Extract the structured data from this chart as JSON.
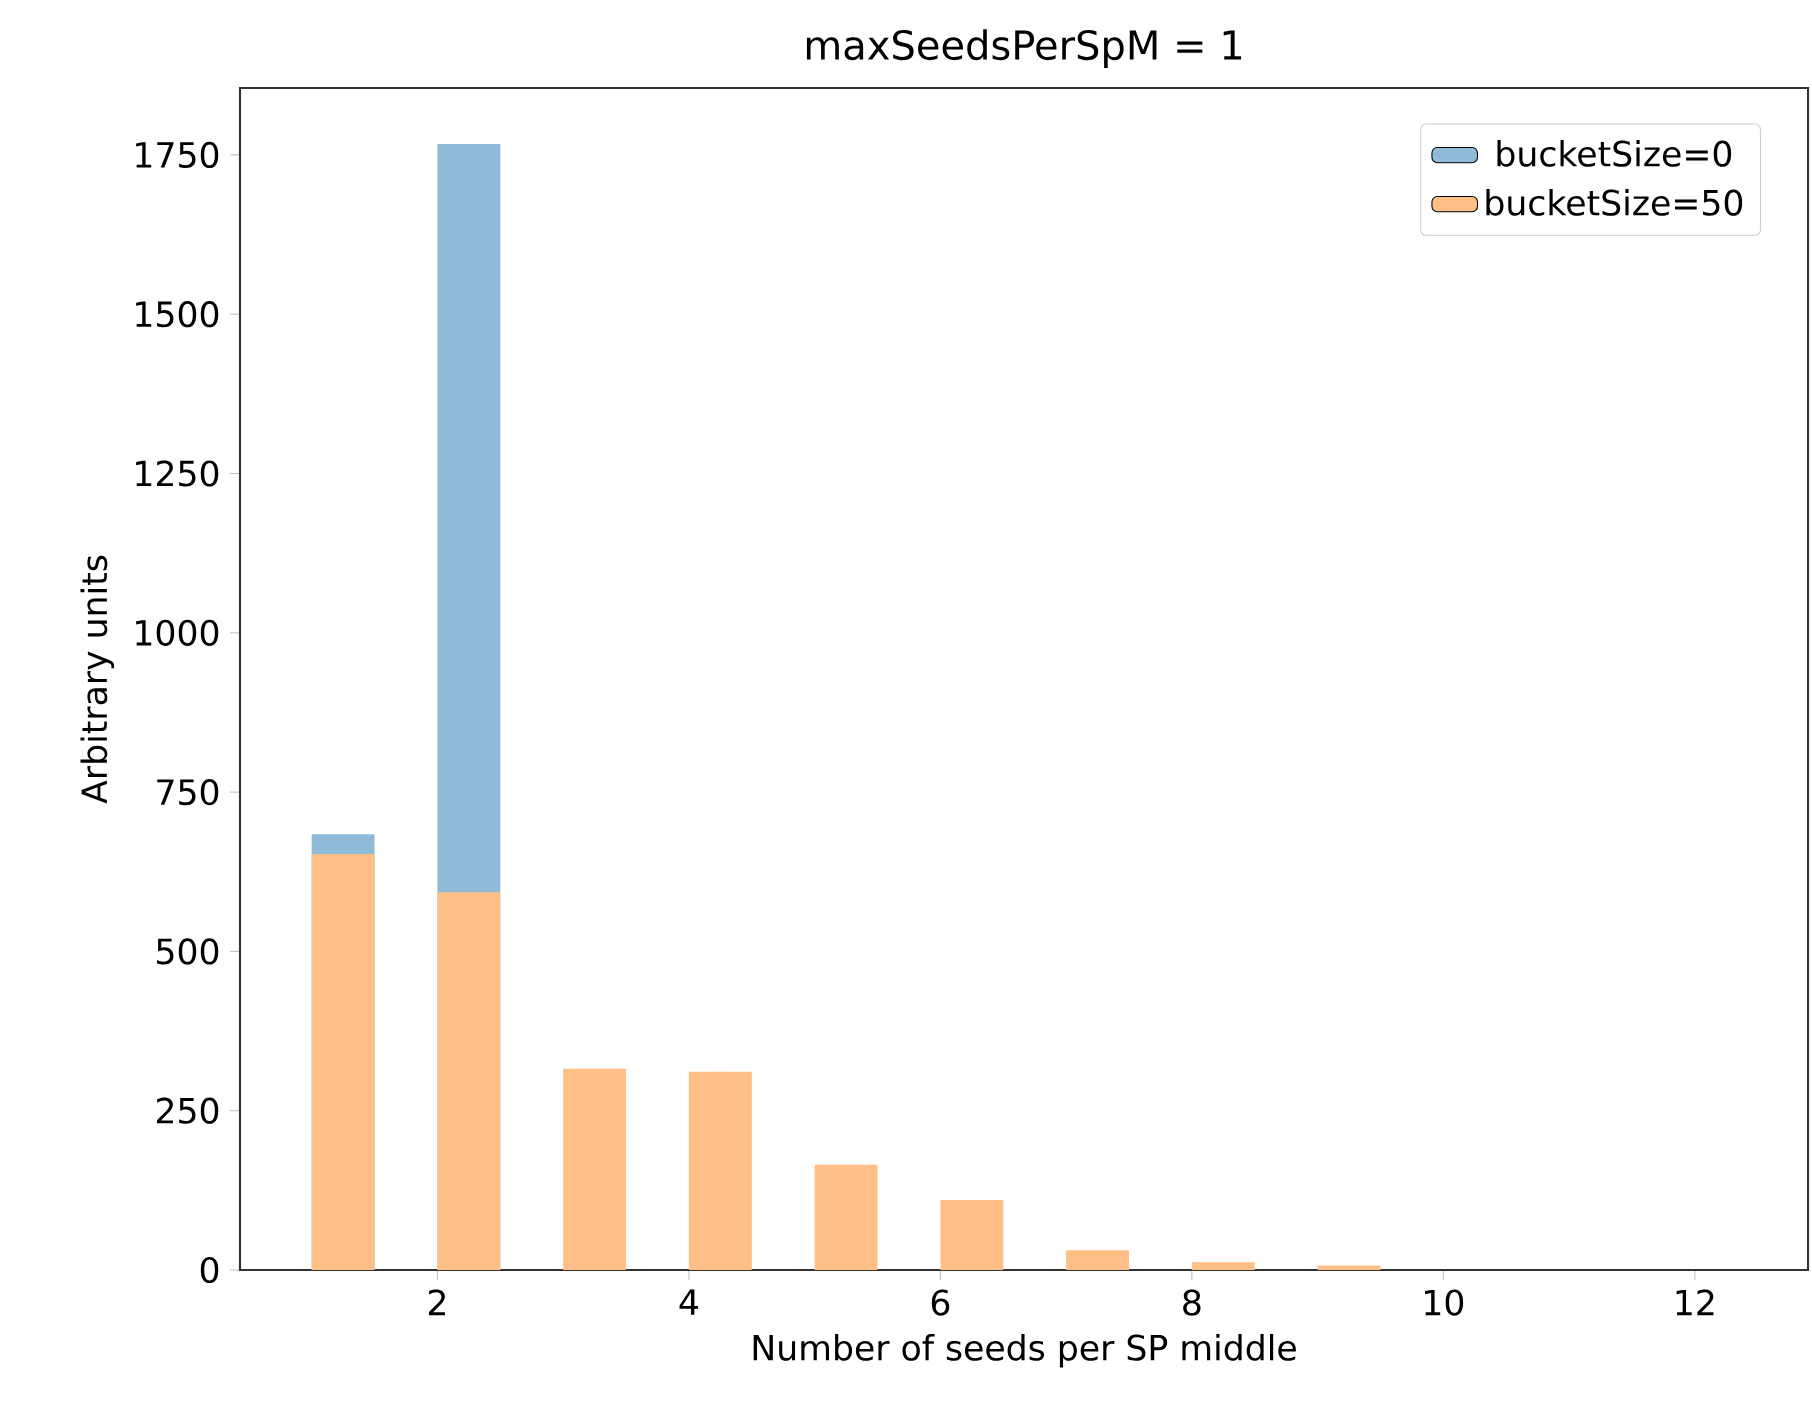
{
  "chart_data": {
    "type": "histogram",
    "title": "maxSeedsPerSpM = 1",
    "xlabel": "Number of seeds per SP middle",
    "ylabel": "Arbitrary units",
    "bins": [
      1,
      1.5,
      2,
      2.5,
      3,
      3.5,
      4,
      4.5,
      5,
      5.5,
      6,
      6.5,
      7,
      7.5,
      8,
      8.5,
      9,
      9.5,
      10,
      10.5,
      11,
      11.5,
      12,
      12.5
    ],
    "series": [
      {
        "name": "bucketSize=0",
        "color": "#8fbbd9",
        "values": [
          684,
          0,
          1767,
          0,
          0,
          0,
          0,
          0,
          0,
          0,
          0,
          0,
          0,
          0,
          0,
          0,
          0,
          0,
          0,
          0,
          0,
          0,
          0
        ]
      },
      {
        "name": "bucketSize=50",
        "color": "#ffbf86",
        "values": [
          653,
          0,
          593,
          0,
          316,
          0,
          311,
          0,
          165,
          0,
          110,
          0,
          31,
          0,
          12,
          0,
          7,
          0,
          0,
          0,
          0,
          0,
          0
        ]
      }
    ],
    "xlim": [
      0.43,
      12.9
    ],
    "ylim": [
      0,
      1855
    ],
    "xticks": [
      2,
      4,
      6,
      8,
      10,
      12
    ],
    "yticks": [
      0,
      250,
      500,
      750,
      1000,
      1250,
      1500,
      1750
    ],
    "legend": "top right"
  }
}
